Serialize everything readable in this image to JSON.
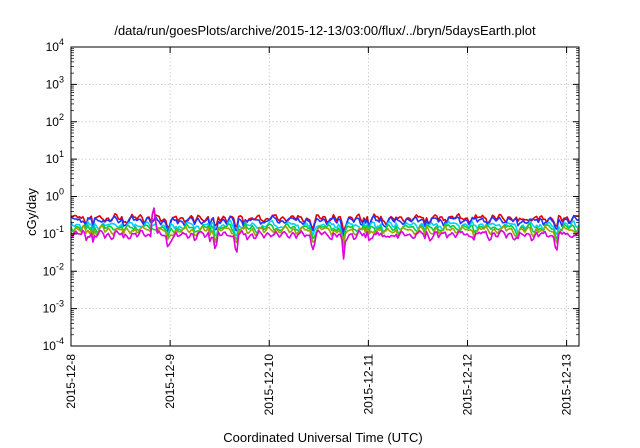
{
  "chart_data": {
    "type": "line",
    "title": "/data/run/goesPlots/archive/2015-12-13/03:00/flux/../bryn/5daysEarth.plot",
    "xlabel": "Coordinated Universal Time (UTC)",
    "ylabel": "cGy/day",
    "yscale": "log",
    "ylim": [
      0.0001,
      10000
    ],
    "xlim": [
      "2015-12-08 00:00",
      "2015-12-13 03:00"
    ],
    "grid": true,
    "x_ticks": [
      "2015-12-8",
      "2015-12-9",
      "2015-12-10",
      "2015-12-11",
      "2015-12-12",
      "2015-12-13"
    ],
    "y_ticks": [
      {
        "base": "10",
        "exp": "-4",
        "value": 0.0001
      },
      {
        "base": "10",
        "exp": "-3",
        "value": 0.001
      },
      {
        "base": "10",
        "exp": "-2",
        "value": 0.01
      },
      {
        "base": "10",
        "exp": "-1",
        "value": 0.1
      },
      {
        "base": "10",
        "exp": "0",
        "value": 1
      },
      {
        "base": "10",
        "exp": "1",
        "value": 10
      },
      {
        "base": "10",
        "exp": "2",
        "value": 100
      },
      {
        "base": "10",
        "exp": "3",
        "value": 1000
      },
      {
        "base": "10",
        "exp": "4",
        "value": 10000
      }
    ],
    "series": [
      {
        "color": "#e00000",
        "level": 0.26,
        "dip_scale": 0.6
      },
      {
        "color": "#2233ff",
        "level": 0.23,
        "dip_scale": 0.7
      },
      {
        "color": "#00d0ff",
        "level": 0.17,
        "dip_scale": 0.7
      },
      {
        "color": "#00d040",
        "level": 0.145,
        "dip_scale": 0.75
      },
      {
        "color": "#a0a000",
        "level": 0.125,
        "dip_scale": 0.8
      },
      {
        "color": "#e000e0",
        "level": 0.095,
        "dip_scale": 1.0
      }
    ],
    "events": [
      {
        "t": "2015-12-08 20:00",
        "peak": 0.55
      },
      {
        "t": "2015-12-08 23:30",
        "dip": 0.03
      },
      {
        "t": "2015-12-09 11:00",
        "dip": 0.025
      },
      {
        "t": "2015-12-09 16:00",
        "dip": 0.009
      },
      {
        "t": "2015-12-10 10:30",
        "dip": 0.03
      },
      {
        "t": "2015-12-10 18:00",
        "dip": 0.02
      },
      {
        "t": "2015-12-12 21:30",
        "dip": 0.02
      }
    ]
  }
}
